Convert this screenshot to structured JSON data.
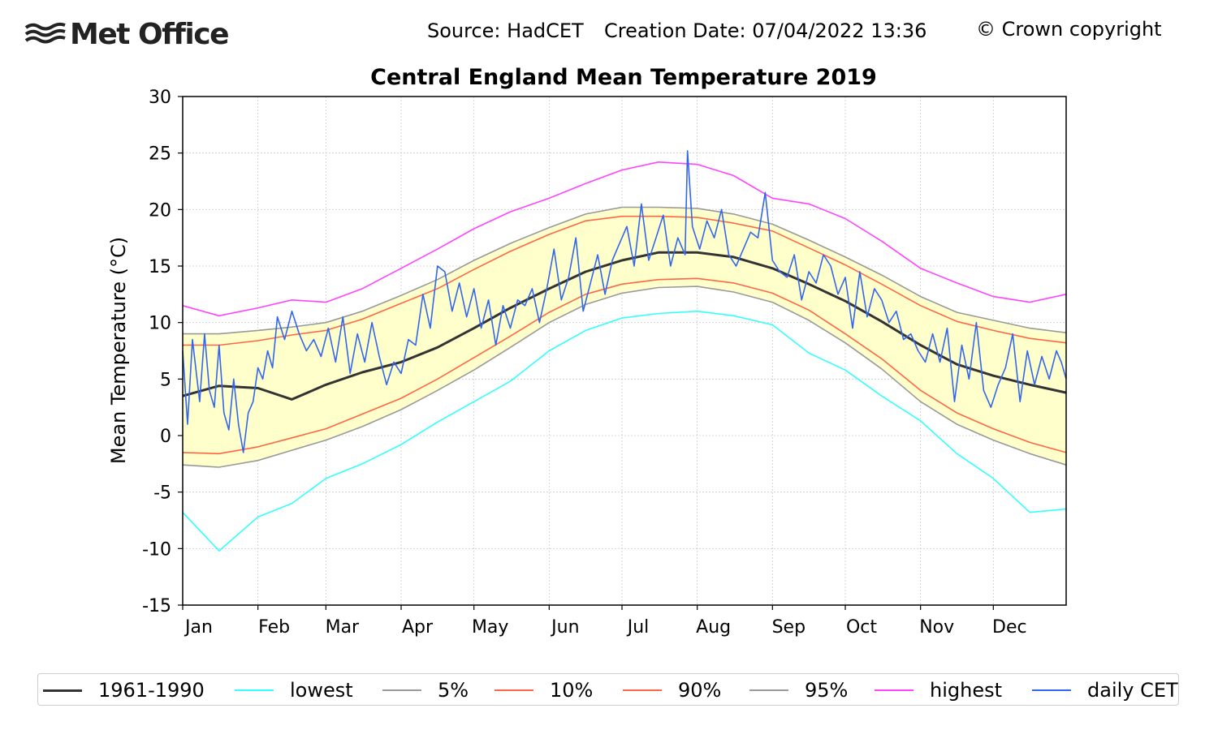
{
  "header": {
    "logo_text": "Met Office",
    "logo_icon": "met-office-waves-icon",
    "source": "Source: HadCET",
    "creation": "Creation Date: 07/04/2022 13:36",
    "copyright": "© Crown copyright"
  },
  "chart_data": {
    "type": "line",
    "title": "Central England Mean Temperature 2019",
    "ylabel": "Mean Temperature (°C)",
    "xlabel": "",
    "ylim": [
      -15,
      30
    ],
    "yticks": [
      -15,
      -10,
      -5,
      0,
      5,
      10,
      15,
      20,
      25,
      30
    ],
    "xlim": [
      1,
      365
    ],
    "month_starts": [
      1,
      32,
      60,
      91,
      121,
      152,
      182,
      213,
      244,
      274,
      305,
      335
    ],
    "month_labels": [
      "Jan",
      "Feb",
      "Mar",
      "Apr",
      "May",
      "Jun",
      "Jul",
      "Aug",
      "Sep",
      "Oct",
      "Nov",
      "Dec"
    ],
    "grid": true,
    "band_fill": "#ffffcc",
    "legend_position": "bottom",
    "series": [
      {
        "name": "1961-1990",
        "color": "#333333",
        "width": 3,
        "x": [
          1,
          16,
          32,
          46,
          60,
          75,
          91,
          106,
          121,
          136,
          152,
          167,
          182,
          197,
          213,
          228,
          244,
          259,
          274,
          289,
          305,
          320,
          335,
          350,
          365
        ],
        "values": [
          3.5,
          4.4,
          4.2,
          3.2,
          4.5,
          5.6,
          6.5,
          7.8,
          9.5,
          11.3,
          13.0,
          14.5,
          15.5,
          16.2,
          16.2,
          15.8,
          14.8,
          13.4,
          11.9,
          10.1,
          8.0,
          6.3,
          5.3,
          4.5,
          3.8
        ]
      },
      {
        "name": "lowest",
        "color": "#33ffff",
        "width": 1.6,
        "x": [
          1,
          16,
          32,
          46,
          60,
          75,
          91,
          106,
          121,
          136,
          152,
          167,
          182,
          197,
          213,
          228,
          244,
          259,
          274,
          289,
          305,
          320,
          335,
          350,
          365
        ],
        "values": [
          -6.8,
          -10.2,
          -7.2,
          -6.0,
          -3.8,
          -2.5,
          -0.8,
          1.2,
          3.0,
          4.8,
          7.5,
          9.3,
          10.4,
          10.8,
          11.0,
          10.6,
          9.8,
          7.3,
          5.8,
          3.5,
          1.3,
          -1.6,
          -3.8,
          -6.8,
          -6.5
        ]
      },
      {
        "name": "5%",
        "color": "#999999",
        "width": 1.6,
        "x": [
          1,
          16,
          32,
          46,
          60,
          75,
          91,
          106,
          121,
          136,
          152,
          167,
          182,
          197,
          213,
          228,
          244,
          259,
          274,
          289,
          305,
          320,
          335,
          350,
          365
        ],
        "values": [
          -2.6,
          -2.8,
          -2.2,
          -1.3,
          -0.4,
          0.8,
          2.3,
          4.0,
          5.8,
          7.8,
          10.0,
          11.6,
          12.6,
          13.1,
          13.2,
          12.7,
          11.8,
          10.2,
          8.2,
          5.9,
          3.0,
          1.0,
          -0.4,
          -1.6,
          -2.6
        ]
      },
      {
        "name": "10%",
        "color": "#ff6644",
        "width": 1.6,
        "x": [
          1,
          16,
          32,
          46,
          60,
          75,
          91,
          106,
          121,
          136,
          152,
          167,
          182,
          197,
          213,
          228,
          244,
          259,
          274,
          289,
          305,
          320,
          335,
          350,
          365
        ],
        "values": [
          -1.5,
          -1.6,
          -1.0,
          -0.2,
          0.6,
          1.9,
          3.3,
          5.0,
          6.9,
          8.8,
          10.9,
          12.5,
          13.4,
          13.8,
          13.9,
          13.5,
          12.6,
          11.1,
          9.0,
          6.8,
          4.0,
          2.0,
          0.6,
          -0.6,
          -1.5
        ]
      },
      {
        "name": "90%",
        "color": "#ff6644",
        "width": 1.6,
        "x": [
          1,
          16,
          32,
          46,
          60,
          75,
          91,
          106,
          121,
          136,
          152,
          167,
          182,
          197,
          213,
          228,
          244,
          259,
          274,
          289,
          305,
          320,
          335,
          350,
          365
        ],
        "values": [
          8.0,
          8.0,
          8.4,
          8.9,
          9.3,
          10.3,
          11.7,
          13.0,
          14.7,
          16.3,
          17.8,
          19.0,
          19.4,
          19.4,
          19.3,
          18.8,
          18.1,
          16.6,
          15.1,
          13.4,
          11.5,
          10.1,
          9.3,
          8.6,
          8.2
        ]
      },
      {
        "name": "95%",
        "color": "#999999",
        "width": 1.6,
        "x": [
          1,
          16,
          32,
          46,
          60,
          75,
          91,
          106,
          121,
          136,
          152,
          167,
          182,
          197,
          213,
          228,
          244,
          259,
          274,
          289,
          305,
          320,
          335,
          350,
          365
        ],
        "values": [
          9.0,
          9.0,
          9.3,
          9.6,
          10.0,
          11.0,
          12.4,
          13.8,
          15.5,
          17.0,
          18.4,
          19.6,
          20.2,
          20.2,
          20.1,
          19.6,
          18.7,
          17.3,
          15.8,
          14.2,
          12.3,
          10.9,
          10.2,
          9.5,
          9.1
        ]
      },
      {
        "name": "highest",
        "color": "#ff44ff",
        "width": 1.6,
        "x": [
          1,
          16,
          32,
          46,
          60,
          75,
          91,
          106,
          121,
          136,
          152,
          167,
          182,
          197,
          213,
          228,
          244,
          259,
          274,
          289,
          305,
          320,
          335,
          350,
          365
        ],
        "values": [
          11.5,
          10.6,
          11.3,
          12.0,
          11.8,
          13.0,
          14.8,
          16.5,
          18.3,
          19.8,
          21.0,
          22.3,
          23.5,
          24.2,
          24.0,
          23.0,
          21.0,
          20.5,
          19.2,
          17.2,
          14.8,
          13.5,
          12.3,
          11.8,
          12.5
        ]
      },
      {
        "name": "daily CET",
        "color": "#3366ee",
        "width": 1.6,
        "x": [
          1,
          3,
          5,
          8,
          10,
          12,
          14,
          16,
          18,
          20,
          22,
          24,
          26,
          28,
          30,
          32,
          34,
          36,
          38,
          40,
          43,
          46,
          49,
          52,
          55,
          58,
          61,
          64,
          67,
          70,
          73,
          76,
          79,
          82,
          85,
          88,
          91,
          94,
          97,
          100,
          103,
          106,
          109,
          112,
          115,
          118,
          121,
          124,
          127,
          130,
          133,
          136,
          139,
          142,
          145,
          148,
          151,
          154,
          157,
          160,
          163,
          166,
          169,
          172,
          175,
          178,
          181,
          184,
          187,
          190,
          193,
          196,
          199,
          202,
          205,
          208,
          209,
          211,
          214,
          217,
          220,
          223,
          226,
          229,
          232,
          235,
          238,
          241,
          244,
          247,
          250,
          253,
          256,
          259,
          262,
          265,
          268,
          271,
          274,
          277,
          280,
          283,
          286,
          289,
          292,
          295,
          298,
          301,
          304,
          307,
          310,
          313,
          316,
          319,
          322,
          325,
          328,
          331,
          334,
          337,
          340,
          343,
          346,
          349,
          352,
          355,
          358,
          361,
          363,
          365
        ],
        "values": [
          7.5,
          1.0,
          8.5,
          3.0,
          9.0,
          4.0,
          2.5,
          8.0,
          2.0,
          0.5,
          5.0,
          1.0,
          -1.5,
          2.0,
          3.0,
          6.0,
          5.0,
          7.5,
          6.0,
          10.5,
          8.5,
          11.0,
          9.0,
          7.5,
          8.5,
          7.0,
          9.5,
          6.5,
          10.5,
          5.5,
          9.0,
          6.5,
          10.0,
          7.0,
          4.5,
          6.5,
          5.5,
          8.5,
          8.0,
          12.5,
          9.5,
          15.0,
          14.5,
          11.0,
          13.5,
          10.5,
          13.0,
          9.5,
          12.0,
          8.0,
          11.5,
          9.5,
          12.0,
          11.5,
          13.0,
          10.0,
          13.0,
          16.5,
          12.0,
          14.0,
          17.5,
          11.0,
          13.5,
          16.0,
          12.5,
          15.5,
          17.0,
          18.5,
          15.0,
          20.5,
          15.5,
          17.5,
          19.5,
          15.0,
          17.5,
          16.0,
          25.2,
          18.5,
          16.5,
          19.0,
          17.5,
          20.0,
          16.0,
          15.0,
          16.5,
          18.0,
          17.5,
          21.5,
          15.5,
          14.5,
          14.0,
          16.0,
          12.0,
          14.5,
          13.5,
          16.0,
          15.0,
          12.5,
          14.0,
          9.5,
          14.5,
          10.5,
          13.0,
          12.0,
          10.0,
          11.0,
          8.5,
          9.0,
          7.5,
          6.5,
          9.0,
          6.5,
          9.5,
          3.0,
          8.0,
          5.0,
          10.0,
          4.0,
          2.5,
          4.5,
          6.0,
          9.0,
          3.0,
          7.5,
          4.5,
          7.0,
          5.0,
          7.5,
          6.5,
          5.0
        ]
      }
    ]
  }
}
